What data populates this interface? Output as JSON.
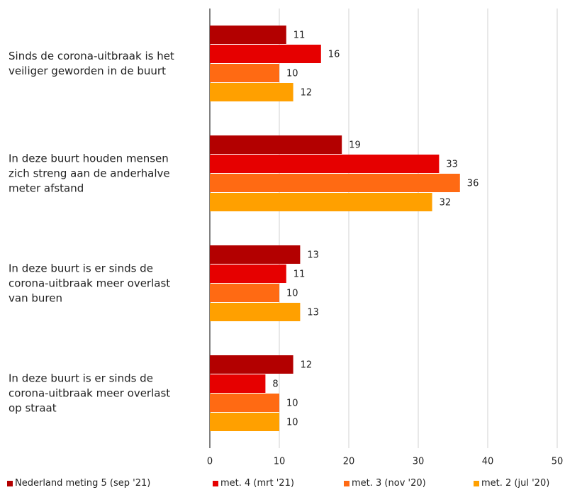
{
  "chart_data": {
    "type": "bar",
    "orientation": "horizontal",
    "categories": [
      "Sinds de corona-uitbraak is het veiliger geworden in de buurt",
      "In deze buurt houden mensen zich streng aan de anderhalve meter afstand",
      "In deze buurt is er sinds de corona-uitbraak meer overlast van buren",
      "In deze buurt is er sinds de corona-uitbraak meer overlast op straat"
    ],
    "series": [
      {
        "name": "Nederland meting 5 (sep '21)",
        "color": "#b30000",
        "values": [
          11,
          19,
          13,
          12
        ]
      },
      {
        "name": "met. 4 (mrt '21)",
        "color": "#e60000",
        "values": [
          16,
          33,
          11,
          8
        ]
      },
      {
        "name": "met. 3 (nov '20)",
        "color": "#ff6a13",
        "values": [
          10,
          36,
          10,
          10
        ]
      },
      {
        "name": "met. 2 (jul '20)",
        "color": "#ffa000",
        "values": [
          12,
          32,
          13,
          10
        ]
      }
    ],
    "xlim": [
      0,
      50
    ],
    "xticks": [
      0,
      10,
      20,
      30,
      40,
      50
    ],
    "grid": true,
    "legend": "bottom"
  }
}
